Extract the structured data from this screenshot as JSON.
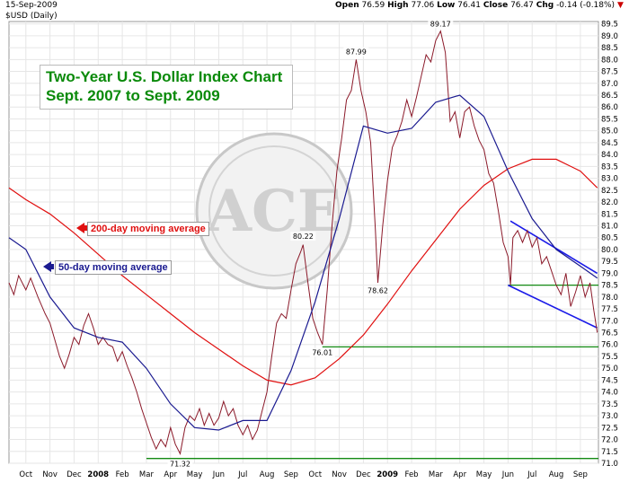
{
  "header": {
    "date": "15-Sep-2009",
    "symbol": "$USD (Daily)",
    "open_label": "Open",
    "open": "76.59",
    "high_label": "High",
    "high": "77.06",
    "low_label": "Low",
    "low": "76.41",
    "close_label": "Close",
    "close": "76.47",
    "chg_label": "Chg",
    "chg": "-0.14 (-0.18%)"
  },
  "annotations": {
    "title_line1": "Two-Year U.S. Dollar Index Chart",
    "title_line2": "Sept. 2007 to Sept. 2009",
    "ma200_label": "200-day moving average",
    "ma50_label": "50-day moving average",
    "logo_text": "ACE"
  },
  "colors": {
    "price": "#8b1a2a",
    "ma200": "#e01010",
    "ma50": "#1a1a90",
    "support": "#138a13",
    "channel": "#1a1ae8",
    "title": "#0a8a0a",
    "grid": "#e6e6e6"
  },
  "chart_data": {
    "type": "line",
    "y_ticks": [
      "71.0",
      "71.5",
      "72.0",
      "72.5",
      "73.0",
      "73.5",
      "74.0",
      "74.5",
      "75.0",
      "75.5",
      "76.0",
      "76.5",
      "77.0",
      "77.5",
      "78.0",
      "78.5",
      "79.0",
      "79.5",
      "80.0",
      "80.5",
      "81.0",
      "81.5",
      "82.0",
      "82.5",
      "83.0",
      "83.5",
      "84.0",
      "84.5",
      "85.0",
      "85.5",
      "86.0",
      "86.5",
      "87.0",
      "87.5",
      "88.0",
      "88.5",
      "89.0",
      "89.5"
    ],
    "ylim": [
      71.0,
      89.6
    ],
    "x_ticks": [
      "Oct",
      "Nov",
      "Dec",
      "2008",
      "Feb",
      "Mar",
      "Apr",
      "May",
      "Jun",
      "Jul",
      "Aug",
      "Sep",
      "Oct",
      "Nov",
      "Dec",
      "2009",
      "Feb",
      "Mar",
      "Apr",
      "May",
      "Jun",
      "Jul",
      "Aug",
      "Sep"
    ],
    "x_tick_month_index": [
      0,
      1,
      2,
      3,
      4,
      5,
      6,
      7,
      8,
      9,
      10,
      11,
      12,
      13,
      14,
      15,
      16,
      17,
      18,
      19,
      20,
      21,
      22,
      23
    ],
    "xlim_month_index": [
      -0.7,
      23.75
    ],
    "price_labels": [
      {
        "text": "71.32",
        "month_index": 6.4,
        "value": 71.32,
        "pos": "below"
      },
      {
        "text": "80.22",
        "month_index": 11.5,
        "value": 80.22,
        "pos": "above"
      },
      {
        "text": "76.01",
        "month_index": 12.3,
        "value": 76.01,
        "pos": "below"
      },
      {
        "text": "87.99",
        "month_index": 13.7,
        "value": 87.99,
        "pos": "above"
      },
      {
        "text": "78.62",
        "month_index": 14.6,
        "value": 78.62,
        "pos": "below"
      },
      {
        "text": "89.17",
        "month_index": 17.2,
        "value": 89.17,
        "pos": "above"
      }
    ],
    "series": [
      {
        "name": "$USD",
        "points": [
          [
            -0.7,
            78.6
          ],
          [
            -0.5,
            78.1
          ],
          [
            -0.3,
            78.9
          ],
          [
            0.0,
            78.3
          ],
          [
            0.2,
            78.8
          ],
          [
            0.5,
            78.0
          ],
          [
            0.8,
            77.3
          ],
          [
            1.0,
            76.9
          ],
          [
            1.2,
            76.2
          ],
          [
            1.4,
            75.5
          ],
          [
            1.6,
            75.0
          ],
          [
            1.8,
            75.6
          ],
          [
            2.0,
            76.3
          ],
          [
            2.2,
            76.0
          ],
          [
            2.4,
            76.8
          ],
          [
            2.6,
            77.3
          ],
          [
            2.8,
            76.7
          ],
          [
            3.0,
            76.0
          ],
          [
            3.2,
            76.3
          ],
          [
            3.4,
            76.0
          ],
          [
            3.6,
            75.9
          ],
          [
            3.8,
            75.3
          ],
          [
            4.0,
            75.7
          ],
          [
            4.2,
            75.1
          ],
          [
            4.4,
            74.6
          ],
          [
            4.6,
            74.0
          ],
          [
            4.8,
            73.3
          ],
          [
            5.0,
            72.7
          ],
          [
            5.2,
            72.1
          ],
          [
            5.4,
            71.6
          ],
          [
            5.6,
            72.0
          ],
          [
            5.8,
            71.7
          ],
          [
            6.0,
            72.5
          ],
          [
            6.2,
            71.8
          ],
          [
            6.4,
            71.4
          ],
          [
            6.6,
            72.5
          ],
          [
            6.8,
            73.0
          ],
          [
            7.0,
            72.8
          ],
          [
            7.2,
            73.3
          ],
          [
            7.4,
            72.6
          ],
          [
            7.6,
            73.1
          ],
          [
            7.8,
            72.6
          ],
          [
            8.0,
            72.9
          ],
          [
            8.2,
            73.6
          ],
          [
            8.4,
            73.0
          ],
          [
            8.6,
            73.3
          ],
          [
            8.8,
            72.6
          ],
          [
            9.0,
            72.2
          ],
          [
            9.2,
            72.6
          ],
          [
            9.4,
            72.0
          ],
          [
            9.6,
            72.4
          ],
          [
            9.8,
            73.2
          ],
          [
            10.0,
            74.0
          ],
          [
            10.2,
            75.5
          ],
          [
            10.4,
            76.9
          ],
          [
            10.6,
            77.3
          ],
          [
            10.8,
            77.1
          ],
          [
            11.0,
            78.3
          ],
          [
            11.2,
            79.4
          ],
          [
            11.4,
            79.9
          ],
          [
            11.5,
            80.2
          ],
          [
            11.7,
            78.6
          ],
          [
            11.9,
            77.1
          ],
          [
            12.1,
            76.5
          ],
          [
            12.3,
            76.0
          ],
          [
            12.5,
            78.3
          ],
          [
            12.7,
            81.0
          ],
          [
            12.9,
            83.3
          ],
          [
            13.1,
            84.7
          ],
          [
            13.3,
            86.3
          ],
          [
            13.5,
            86.7
          ],
          [
            13.7,
            88.0
          ],
          [
            13.9,
            86.7
          ],
          [
            14.1,
            85.8
          ],
          [
            14.3,
            84.5
          ],
          [
            14.5,
            80.8
          ],
          [
            14.6,
            78.6
          ],
          [
            14.8,
            81.0
          ],
          [
            15.0,
            82.9
          ],
          [
            15.2,
            84.3
          ],
          [
            15.4,
            84.8
          ],
          [
            15.6,
            85.4
          ],
          [
            15.8,
            86.3
          ],
          [
            16.0,
            85.6
          ],
          [
            16.2,
            86.4
          ],
          [
            16.4,
            87.3
          ],
          [
            16.6,
            88.2
          ],
          [
            16.8,
            87.9
          ],
          [
            17.0,
            88.8
          ],
          [
            17.2,
            89.2
          ],
          [
            17.4,
            88.3
          ],
          [
            17.6,
            85.4
          ],
          [
            17.8,
            85.8
          ],
          [
            18.0,
            84.7
          ],
          [
            18.2,
            85.8
          ],
          [
            18.4,
            86.0
          ],
          [
            18.6,
            85.2
          ],
          [
            18.8,
            84.6
          ],
          [
            19.0,
            84.2
          ],
          [
            19.2,
            83.2
          ],
          [
            19.4,
            82.8
          ],
          [
            19.6,
            81.6
          ],
          [
            19.8,
            80.3
          ],
          [
            20.0,
            79.7
          ],
          [
            20.1,
            78.5
          ],
          [
            20.2,
            80.5
          ],
          [
            20.4,
            80.8
          ],
          [
            20.6,
            80.3
          ],
          [
            20.8,
            80.8
          ],
          [
            21.0,
            80.1
          ],
          [
            21.2,
            80.5
          ],
          [
            21.4,
            79.4
          ],
          [
            21.6,
            79.7
          ],
          [
            21.8,
            79.1
          ],
          [
            22.0,
            78.5
          ],
          [
            22.2,
            78.1
          ],
          [
            22.4,
            79.0
          ],
          [
            22.6,
            77.6
          ],
          [
            22.8,
            78.2
          ],
          [
            23.0,
            78.9
          ],
          [
            23.2,
            78.0
          ],
          [
            23.4,
            78.6
          ],
          [
            23.55,
            77.5
          ],
          [
            23.7,
            76.5
          ]
        ]
      },
      {
        "name": "200-day moving average",
        "points": [
          [
            -0.7,
            82.6
          ],
          [
            0.0,
            82.1
          ],
          [
            1.0,
            81.5
          ],
          [
            2.0,
            80.7
          ],
          [
            3.0,
            79.8
          ],
          [
            4.0,
            78.9
          ],
          [
            5.0,
            78.1
          ],
          [
            6.0,
            77.3
          ],
          [
            7.0,
            76.5
          ],
          [
            8.0,
            75.8
          ],
          [
            9.0,
            75.1
          ],
          [
            10.0,
            74.5
          ],
          [
            11.0,
            74.3
          ],
          [
            12.0,
            74.6
          ],
          [
            13.0,
            75.4
          ],
          [
            14.0,
            76.4
          ],
          [
            15.0,
            77.7
          ],
          [
            16.0,
            79.1
          ],
          [
            17.0,
            80.4
          ],
          [
            18.0,
            81.7
          ],
          [
            19.0,
            82.7
          ],
          [
            20.0,
            83.4
          ],
          [
            21.0,
            83.8
          ],
          [
            22.0,
            83.8
          ],
          [
            23.0,
            83.3
          ],
          [
            23.7,
            82.6
          ]
        ]
      },
      {
        "name": "50-day moving average",
        "points": [
          [
            -0.7,
            80.5
          ],
          [
            0.0,
            80.0
          ],
          [
            1.0,
            78.0
          ],
          [
            2.0,
            76.7
          ],
          [
            3.0,
            76.3
          ],
          [
            4.0,
            76.1
          ],
          [
            5.0,
            75.0
          ],
          [
            6.0,
            73.5
          ],
          [
            7.0,
            72.5
          ],
          [
            8.0,
            72.4
          ],
          [
            9.0,
            72.8
          ],
          [
            10.0,
            72.8
          ],
          [
            11.0,
            74.9
          ],
          [
            12.0,
            77.8
          ],
          [
            13.0,
            81.3
          ],
          [
            14.0,
            85.2
          ],
          [
            15.0,
            84.9
          ],
          [
            16.0,
            85.1
          ],
          [
            17.0,
            86.2
          ],
          [
            18.0,
            86.5
          ],
          [
            19.0,
            85.6
          ],
          [
            20.0,
            83.3
          ],
          [
            21.0,
            81.3
          ],
          [
            22.0,
            80.0
          ],
          [
            23.0,
            79.3
          ],
          [
            23.7,
            78.8
          ]
        ]
      }
    ],
    "support_lines": [
      {
        "value": 78.5,
        "from_month_index": 20.0,
        "to_month_index": 23.75
      },
      {
        "value": 75.9,
        "from_month_index": 12.3,
        "to_month_index": 23.75
      },
      {
        "value": 71.2,
        "from_month_index": 5.0,
        "to_month_index": 23.75
      }
    ],
    "channel_lines": [
      {
        "from": [
          20.1,
          81.2
        ],
        "to": [
          23.7,
          79.0
        ]
      },
      {
        "from": [
          20.0,
          78.5
        ],
        "to": [
          23.7,
          76.7
        ]
      }
    ]
  }
}
